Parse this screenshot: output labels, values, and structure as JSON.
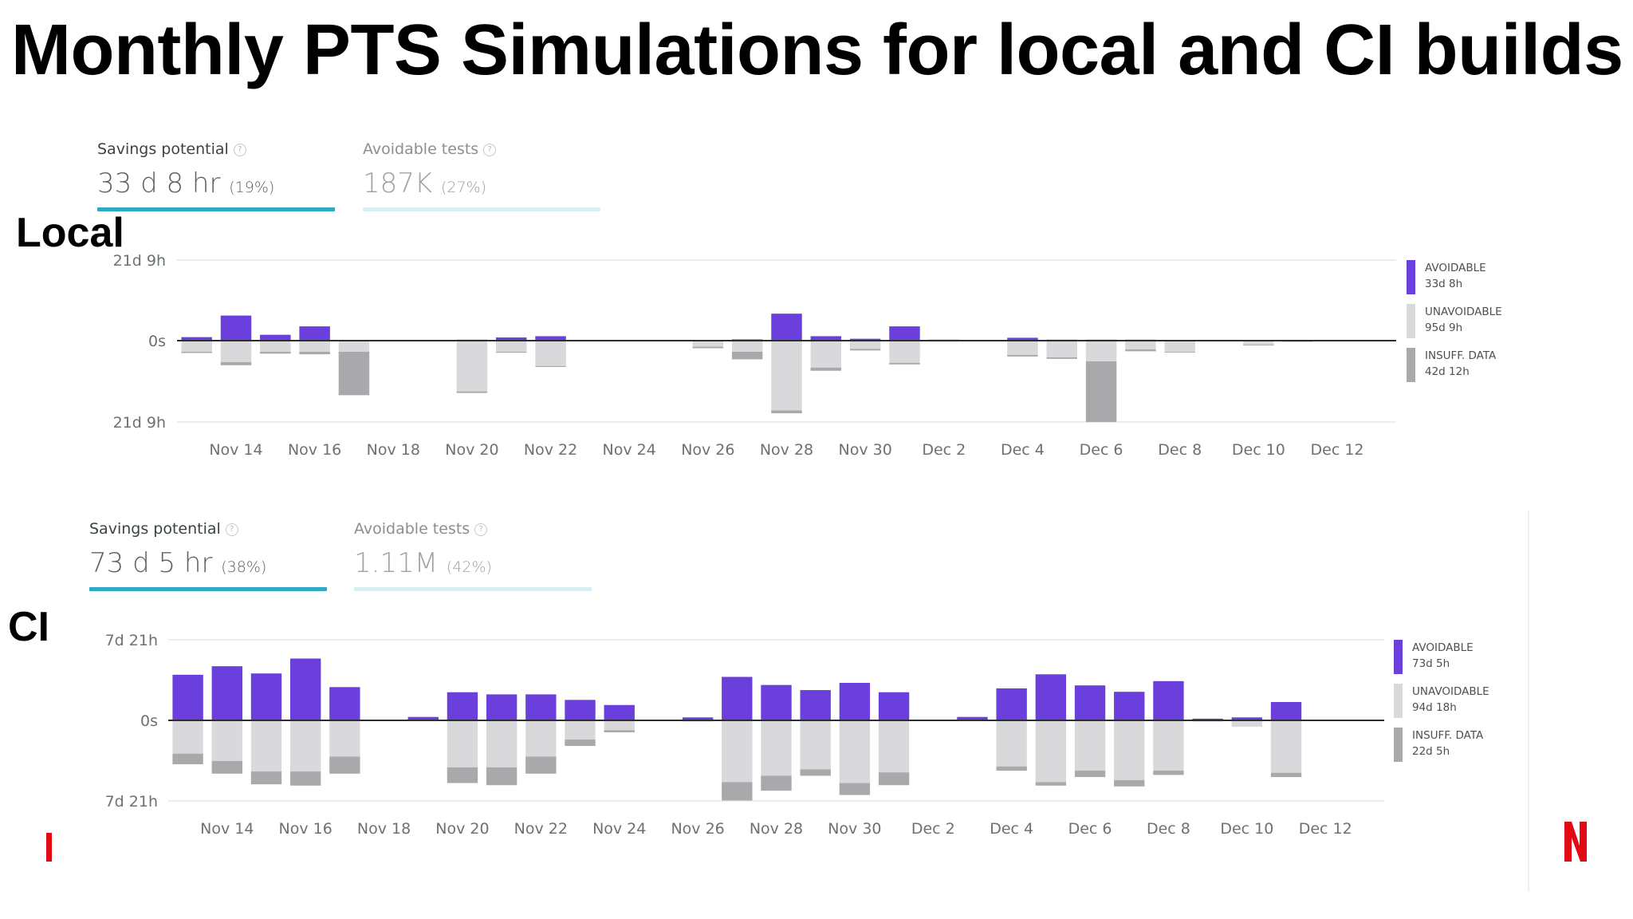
{
  "title": "Monthly PTS Simulations for local and CI builds",
  "colors": {
    "avoidable": "#6a3fdb",
    "unavoidable": "#d9d9dc",
    "insufficient": "#a9a9ab",
    "accent": "#2fa8c4",
    "logo_red": "#e50914"
  },
  "icons": {
    "help": "help-circle-icon",
    "logo": "netflix-n-logo"
  },
  "local": {
    "label": "Local",
    "kpi_savings": {
      "label": "Savings potential",
      "help": "?",
      "value": "33 d 8 hr",
      "pct": "(19%)"
    },
    "kpi_tests": {
      "label": "Avoidable tests",
      "help": "?",
      "value": "187K",
      "pct": "(27%)"
    },
    "y_ticks": {
      "top": "21d 9h",
      "mid": "0s",
      "bottom": "21d 9h"
    },
    "legend": [
      {
        "label": "AVOIDABLE",
        "value": "33d 8h"
      },
      {
        "label": "UNAVOIDABLE",
        "value": "95d 9h"
      },
      {
        "label": "INSUFF. DATA",
        "value": "42d 12h"
      }
    ]
  },
  "ci": {
    "label": "CI",
    "kpi_savings": {
      "label": "Savings potential",
      "help": "?",
      "value": "73 d 5 hr",
      "pct": "(38%)"
    },
    "kpi_tests": {
      "label": "Avoidable tests",
      "help": "?",
      "value": "1.11M",
      "pct": "(42%)"
    },
    "y_ticks": {
      "top": "7d 21h",
      "mid": "0s",
      "bottom": "7d 21h"
    },
    "legend": [
      {
        "label": "AVOIDABLE",
        "value": "73d 5h"
      },
      {
        "label": "UNAVOIDABLE",
        "value": "94d 18h"
      },
      {
        "label": "INSUFF. DATA",
        "value": "22d 5h"
      }
    ]
  },
  "chart_data": [
    {
      "type": "bar",
      "title": "Local",
      "stacked": "diverging",
      "unit": "hours",
      "categories": [
        "Nov 13",
        "Nov 14",
        "Nov 15",
        "Nov 16",
        "Nov 17",
        "Nov 18",
        "Nov 19",
        "Nov 20",
        "Nov 21",
        "Nov 22",
        "Nov 23",
        "Nov 24",
        "Nov 25",
        "Nov 26",
        "Nov 27",
        "Nov 28",
        "Nov 29",
        "Nov 30",
        "Dec 1",
        "Dec 2",
        "Dec 3",
        "Dec 4",
        "Dec 5",
        "Dec 6",
        "Dec 7",
        "Dec 8",
        "Dec 9",
        "Dec 10",
        "Dec 11",
        "Dec 12",
        "Dec 13"
      ],
      "x_tick_labels": [
        "Nov 14",
        "Nov 16",
        "Nov 18",
        "Nov 20",
        "Nov 22",
        "Nov 24",
        "Nov 26",
        "Nov 28",
        "Nov 30",
        "Dec 2",
        "Dec 4",
        "Dec 6",
        "Dec 8",
        "Dec 10",
        "Dec 12"
      ],
      "ylim": [
        -513,
        513
      ],
      "series": [
        {
          "name": "AVOIDABLE",
          "color": "#6a3fdb",
          "values": [
            22,
            158,
            37,
            90,
            0,
            0,
            0,
            6,
            20,
            28,
            2,
            1,
            1,
            0,
            8,
            170,
            28,
            12,
            90,
            6,
            0,
            18,
            6,
            6,
            6,
            5,
            0,
            3,
            2,
            0,
            0
          ]
        },
        {
          "name": "UNAVOIDABLE",
          "color": "#d9d9dc",
          "values": [
            -70,
            -135,
            -70,
            -70,
            -70,
            0,
            0,
            -320,
            -70,
            -160,
            0,
            0,
            0,
            -38,
            -70,
            -440,
            -170,
            -52,
            -140,
            -6,
            -3,
            -90,
            -105,
            -130,
            -55,
            -70,
            0,
            -25,
            -6,
            0,
            0
          ]
        },
        {
          "name": "INSUFF. DATA",
          "color": "#a9a9ab",
          "values": [
            -8,
            -20,
            -12,
            -16,
            -274,
            0,
            0,
            -10,
            -6,
            -6,
            0,
            0,
            0,
            -10,
            -48,
            -18,
            -20,
            -10,
            -10,
            0,
            0,
            -10,
            -10,
            -383,
            -12,
            -5,
            0,
            -5,
            -2,
            0,
            0
          ]
        }
      ],
      "grid": true
    },
    {
      "type": "bar",
      "title": "CI",
      "stacked": "diverging",
      "unit": "hours",
      "categories": [
        "Nov 13",
        "Nov 14",
        "Nov 15",
        "Nov 16",
        "Nov 17",
        "Nov 18",
        "Nov 19",
        "Nov 20",
        "Nov 21",
        "Nov 22",
        "Nov 23",
        "Nov 24",
        "Nov 25",
        "Nov 26",
        "Nov 27",
        "Nov 28",
        "Nov 29",
        "Nov 30",
        "Dec 1",
        "Dec 2",
        "Dec 3",
        "Dec 4",
        "Dec 5",
        "Dec 6",
        "Dec 7",
        "Dec 8",
        "Dec 9",
        "Dec 10",
        "Dec 11",
        "Dec 12",
        "Dec 13"
      ],
      "x_tick_labels": [
        "Nov 14",
        "Nov 16",
        "Nov 18",
        "Nov 20",
        "Nov 22",
        "Nov 24",
        "Nov 26",
        "Nov 28",
        "Nov 30",
        "Dec 2",
        "Dec 4",
        "Dec 6",
        "Dec 8",
        "Dec 10",
        "Dec 12"
      ],
      "ylim": [
        -189,
        189
      ],
      "series": [
        {
          "name": "AVOIDABLE",
          "color": "#6a3fdb",
          "values": [
            107,
            127,
            110,
            145,
            78,
            0,
            8,
            66,
            61,
            61,
            48,
            36,
            0,
            7,
            102,
            83,
            71,
            88,
            66,
            0,
            8,
            75,
            108,
            82,
            67,
            92,
            4,
            7,
            43,
            0,
            0
          ]
        },
        {
          "name": "UNAVOIDABLE",
          "color": "#d9d9dc",
          "values": [
            -78,
            -95,
            -120,
            -120,
            -85,
            0,
            0,
            -110,
            -110,
            -85,
            -45,
            -23,
            0,
            -3,
            -145,
            -130,
            -115,
            -147,
            -122,
            0,
            0,
            -108,
            -145,
            -118,
            -140,
            -118,
            -3,
            -15,
            -123,
            0,
            0
          ]
        },
        {
          "name": "INSUFF. DATA",
          "color": "#a9a9ab",
          "values": [
            -25,
            -30,
            -30,
            -33,
            -40,
            0,
            0,
            -37,
            -42,
            -40,
            -15,
            -5,
            0,
            0,
            -43,
            -35,
            -15,
            -28,
            -30,
            0,
            0,
            -10,
            -8,
            -15,
            -15,
            -10,
            0,
            0,
            -10,
            0,
            0
          ]
        }
      ],
      "grid": true
    }
  ]
}
